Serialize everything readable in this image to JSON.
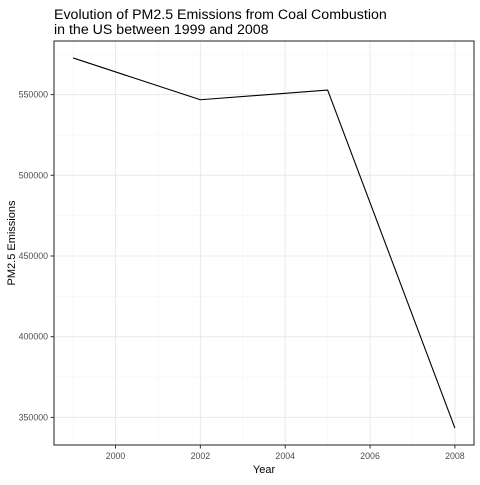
{
  "chart_data": {
    "type": "line",
    "title": "Evolution of PM2.5 Emissions from Coal Combustion\nin the US between 1999 and 2008",
    "xlabel": "Year",
    "ylabel": "PM2.5 Emissions",
    "x": [
      1999,
      2002,
      2005,
      2008
    ],
    "series": [
      {
        "values": [
          572700,
          546800,
          552800,
          343400
        ]
      }
    ],
    "xlim": [
      1998.55,
      2008.45
    ],
    "ylim": [
      332900,
      583200
    ],
    "x_ticks": [
      2000,
      2002,
      2004,
      2006,
      2008
    ],
    "y_ticks": [
      350000,
      400000,
      450000,
      500000,
      550000
    ],
    "x_tick_labels": [
      "2000",
      "2002",
      "2004",
      "2006",
      "2008"
    ],
    "y_tick_labels": [
      "350000",
      "400000",
      "450000",
      "500000",
      "550000"
    ],
    "grid": true,
    "legend": "none",
    "colors": {
      "line": "#000000",
      "grid_major": "#ebebeb",
      "grid_minor": "#f5f5f5",
      "panel_border": "#333333",
      "axis_text": "#4d4d4d",
      "title_text": "#000000"
    }
  }
}
